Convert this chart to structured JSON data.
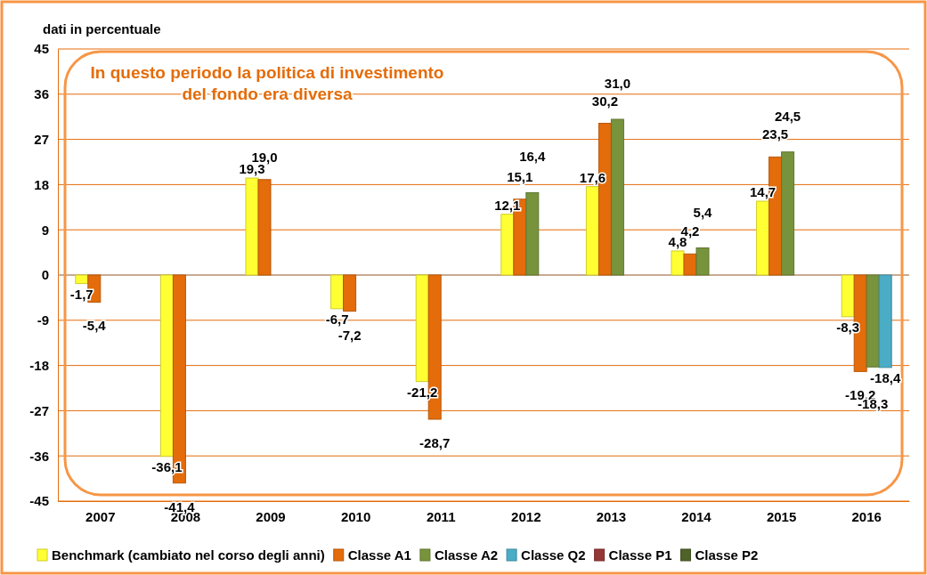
{
  "chart_data": {
    "type": "bar",
    "ylabel": "dati in percentuale",
    "annotations": [
      "In questo periodo la politica di investimento del fondo era diversa"
    ],
    "categories": [
      "2007",
      "2008",
      "2009",
      "2010",
      "2011",
      "2012",
      "2013",
      "2014",
      "2015",
      "2016"
    ],
    "series": [
      {
        "name": "Benchmark (cambiato nel corso degli anni)",
        "color": "#ffff33",
        "values": [
          -1.7,
          -36.1,
          19.3,
          -6.7,
          -21.2,
          12.1,
          17.6,
          4.8,
          14.7,
          -8.3
        ],
        "value_labels": [
          "-1,7",
          "-36,1",
          "19,3",
          "-6,7",
          "-21,2",
          "12,1",
          "17,6",
          "4,8",
          "14,7",
          "-8,3"
        ]
      },
      {
        "name": "Classe A1",
        "color": "#e46c0a",
        "values": [
          -5.4,
          -41.4,
          19.0,
          -7.2,
          -28.7,
          15.1,
          30.2,
          4.2,
          23.5,
          -19.2
        ],
        "value_labels": [
          "-5,4",
          "-41,4",
          "19,0",
          "-7,2",
          "-28,7",
          "15,1",
          "30,2",
          "4,2",
          "23,5",
          "-19,2"
        ]
      },
      {
        "name": "Classe A2",
        "color": "#77933c",
        "values": [
          null,
          null,
          null,
          null,
          null,
          16.4,
          31.0,
          5.4,
          24.5,
          -18.3
        ],
        "value_labels": [
          null,
          null,
          null,
          null,
          null,
          "16,4",
          "31,0",
          "5,4",
          "24,5",
          "-18,3"
        ]
      },
      {
        "name": "Classe Q2",
        "color": "#4bacc6",
        "values": [
          null,
          null,
          null,
          null,
          null,
          null,
          null,
          null,
          null,
          -18.4
        ],
        "value_labels": [
          null,
          null,
          null,
          null,
          null,
          null,
          null,
          null,
          null,
          "-18,4"
        ]
      },
      {
        "name": "Classe P1",
        "color": "#953735",
        "values": [
          null,
          null,
          null,
          null,
          null,
          null,
          null,
          null,
          null,
          null
        ]
      },
      {
        "name": "Classe P2",
        "color": "#4f6228",
        "values": [
          null,
          null,
          null,
          null,
          null,
          null,
          null,
          null,
          null,
          null
        ]
      }
    ],
    "ylim": [
      -45,
      45
    ],
    "yticks": [
      -45,
      -36,
      -27,
      -18,
      -9,
      0,
      9,
      18,
      27,
      36,
      45
    ],
    "grid": "y",
    "legend": "bottom"
  }
}
